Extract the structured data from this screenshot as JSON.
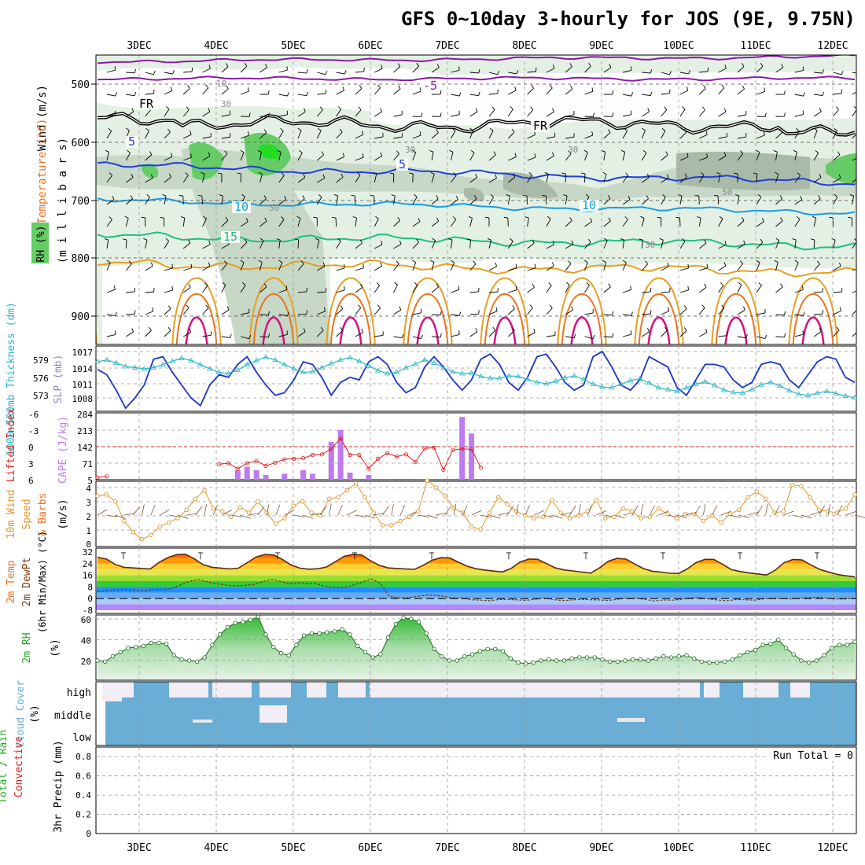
{
  "title": "GFS 0~10day 3-hourly for JOS (9E, 9.75N)",
  "dates": [
    "3DEC",
    "4DEC",
    "5DEC",
    "6DEC",
    "7DEC",
    "8DEC",
    "9DEC",
    "10DEC",
    "11DEC",
    "12DEC"
  ],
  "colors": {
    "frame": "#000000",
    "grid": "#999999",
    "rh_light": "#e3f0e3",
    "rh_mid": "#c7d8c7",
    "rh_dark": "#a9baa9",
    "rh_green": "#66cc66",
    "rh_bright": "#22dd22",
    "wind_barb": "#000000",
    "purple": "#8c1aaa",
    "blue": "#1f3fd6",
    "lightblue": "#1a9be6",
    "teal": "#1dc07f",
    "gold": "#e6a020",
    "orange": "#ea7420",
    "magenta": "#d4137f",
    "slp": "#1a35c8",
    "thick": "#2ab7c9",
    "cape": "#c07af0",
    "li": "#e02020",
    "wind10": "#e5962a",
    "cloud": "#6aadd5"
  },
  "chart_data": [
    {
      "type": "contour",
      "panel": "upper-air",
      "ylabel_parts": [
        "Wind (m/s)",
        "Temperature (°C)",
        "RH (%)"
      ],
      "ylabel_unit": "(m i l l i b a r s)",
      "yticks": [
        "500",
        "600",
        "700",
        "800",
        "900"
      ],
      "ylim": [
        950,
        450
      ],
      "isotherm_labels": [
        "-5",
        "FR",
        "FR",
        "5",
        "5",
        "10",
        "10",
        "15"
      ],
      "rh_labels": [
        "10",
        "30",
        "30",
        "30",
        "50",
        "50",
        "30"
      ]
    },
    {
      "type": "line",
      "panel": "slp-thickness",
      "ylabel_left": "1000~500mb Thickness (dm)",
      "ylabel_right": "SLP (mb)",
      "yticks_left": [
        "579",
        "576",
        "573"
      ],
      "yticks_right": [
        "1017",
        "1014",
        "1011",
        "1008"
      ],
      "series": [
        {
          "name": "SLP (mb)",
          "values": [
            1013.5,
            1012.5,
            1009.5,
            1006,
            1008,
            1010.5,
            1015.5,
            1016,
            1013,
            1010.5,
            1008,
            1006.5,
            1010.5,
            1012.5,
            1012,
            1014.5,
            1016,
            1013,
            1010.5,
            1008.5,
            1009,
            1011.5,
            1015,
            1014.5,
            1012,
            1008.5,
            1011,
            1012,
            1011.5,
            1015,
            1016,
            1014.5,
            1011,
            1009,
            1010,
            1014,
            1016,
            1014,
            1011.5,
            1009.5,
            1011.5,
            1015.5,
            1016.5,
            1014.5,
            1011,
            1009.5,
            1012,
            1016,
            1016.5,
            1014,
            1011,
            1009.5,
            1010.5,
            1016,
            1017,
            1014,
            1010.5,
            1009.5,
            1011.5,
            1016,
            1015,
            1014,
            1010,
            1008.5,
            1011.5,
            1014.5,
            1014.5,
            1014,
            1011.5,
            1010,
            1011,
            1014.5,
            1015,
            1014.5,
            1011.5,
            1010,
            1012.5,
            1015,
            1016,
            1015.5,
            1012,
            1011
          ]
        },
        {
          "name": "Thickness (dm)",
          "values": [
            578.6,
            578.9,
            578.4,
            577.8,
            577.6,
            577.4,
            577.6,
            578.1,
            578.7,
            579.2,
            578.8,
            578.1,
            577.4,
            576.8,
            576.6,
            577.2,
            578.1,
            578.8,
            579.4,
            578.9,
            578.1,
            577.4,
            576.8,
            576.9,
            577.6,
            578.3,
            578.9,
            579.3,
            578.7,
            577.9,
            577.1,
            576.6,
            576.8,
            577.6,
            578.2,
            578.9,
            578.4,
            577.6,
            576.9,
            576.6,
            576.7,
            576.1,
            575.8,
            575.8,
            576.2,
            576.1,
            575.6,
            575.1,
            574.9,
            575.3,
            575.9,
            576.2,
            575.6,
            574.8,
            574.3,
            574.2,
            574.8,
            575.4,
            575.7,
            575.0,
            574.2,
            573.9,
            573.6,
            574.2,
            574.8,
            575.2,
            574.6,
            573.8,
            573.4,
            573.3,
            573.9,
            574.7,
            575.1,
            574.5,
            573.7,
            573.1,
            572.9,
            573.3,
            573.6,
            573.2,
            572.8,
            572.5
          ]
        }
      ]
    },
    {
      "type": "bar",
      "panel": "cape-li",
      "ylabel_left": "Lifted Index",
      "ylabel_right": "CAPE (J/kg)",
      "yticks_left": [
        "-6",
        "-3",
        "0",
        "3",
        "6"
      ],
      "yticks_right": [
        "284",
        "213",
        "142",
        "71",
        "5"
      ],
      "series": [
        {
          "name": "CAPE (J/kg)",
          "values": [
            0,
            0,
            0,
            0,
            0,
            0,
            0,
            0,
            0,
            0,
            0,
            0,
            0,
            0,
            0,
            40,
            55,
            40,
            20,
            0,
            25,
            0,
            40,
            25,
            0,
            160,
            210,
            30,
            0,
            20,
            0,
            0,
            0,
            0,
            0,
            0,
            0,
            0,
            0,
            265,
            195,
            0,
            0,
            0,
            0,
            0,
            0,
            0,
            0,
            0,
            0,
            0,
            0,
            0,
            0,
            0,
            0,
            0,
            0,
            0,
            0,
            0,
            0,
            0,
            0,
            0,
            0,
            0,
            0,
            0,
            0,
            0,
            0,
            0,
            0,
            0,
            0,
            0,
            0,
            0,
            0,
            0
          ]
        },
        {
          "name": "Lifted Index",
          "values": [
            5.6,
            5.4,
            null,
            null,
            null,
            null,
            null,
            null,
            null,
            null,
            null,
            null,
            null,
            3.2,
            3.0,
            4.0,
            3.0,
            2.6,
            3.5,
            2.9,
            2.3,
            2.2,
            2.1,
            1.5,
            1.4,
            0.4,
            -1.5,
            1.5,
            1.5,
            4.0,
            2.2,
            1.2,
            1.8,
            1.4,
            2.8,
            0.3,
            0.2,
            4.2,
            0.6,
            0.4,
            0.5,
            3.8,
            null,
            null,
            null,
            null,
            null,
            null,
            null,
            null,
            null,
            null,
            null,
            null,
            null,
            null,
            null,
            null,
            null,
            null,
            null,
            null,
            null,
            null,
            null,
            null,
            null,
            null,
            null,
            null,
            null,
            null,
            null,
            null,
            null,
            null,
            null,
            null,
            null,
            null,
            null,
            null
          ]
        }
      ]
    },
    {
      "type": "line",
      "panel": "wind10m",
      "ylabel": "10m Wind Speed & Barbs",
      "yunit": "(m/s)",
      "yticks": [
        "0",
        "1",
        "2",
        "3",
        "4"
      ],
      "series": [
        {
          "name": "10m Wind Speed (m/s)",
          "values": [
            3.4,
            3.5,
            3.0,
            1.6,
            0.8,
            0.3,
            0.6,
            1.2,
            1.5,
            1.8,
            2.4,
            3.2,
            3.8,
            2.5,
            2.3,
            1.9,
            2.6,
            2.2,
            3.0,
            2.2,
            1.4,
            1.8,
            2.7,
            3.0,
            2.2,
            2.0,
            3.2,
            3.3,
            3.8,
            4.3,
            3.3,
            2.2,
            1.3,
            1.3,
            1.6,
            1.9,
            2.3,
            4.5,
            4.0,
            3.4,
            2.5,
            2.2,
            1.2,
            1.0,
            2.2,
            3.3,
            2.8,
            2.3,
            2.0,
            1.8,
            1.9,
            3.1,
            2.2,
            1.8,
            2.0,
            2.3,
            3.1,
            1.8,
            1.9,
            2.5,
            2.3,
            1.8,
            1.9,
            2.5,
            2.1,
            1.8,
            2.1,
            2.1,
            1.6,
            2.0,
            1.5,
            2.1,
            2.4,
            3.3,
            3.7,
            3.2,
            2.2,
            2.3,
            4.2,
            4.1,
            3.3,
            2.4,
            2.3,
            2.2,
            2.5,
            3.5
          ]
        }
      ]
    },
    {
      "type": "area",
      "panel": "temperature",
      "ylabel": "2m Temp 2m DewPt (6hr Min/Max) (°C)",
      "yticks": [
        "32",
        "24",
        "16",
        "8",
        "0",
        "-8"
      ],
      "series": [
        {
          "name": "2m Temp (°C)",
          "values": [
            28.4,
            27.2,
            23.5,
            21.5,
            21.1,
            20.7,
            20.4,
            24.9,
            28.2,
            30.2,
            30.5,
            27.3,
            23.3,
            21.5,
            21.0,
            20.4,
            20.9,
            24.7,
            28.6,
            30.4,
            30.0,
            26.9,
            23.0,
            20.9,
            20.2,
            20.5,
            21.7,
            25.3,
            29.0,
            30.3,
            30.0,
            26.1,
            22.8,
            21.1,
            20.7,
            20.3,
            20.1,
            22.9,
            26.4,
            28.1,
            27.9,
            25.0,
            22.2,
            20.5,
            19.6,
            18.9,
            18.3,
            20.8,
            25.2,
            27.2,
            27.0,
            24.0,
            21.1,
            19.7,
            19.0,
            18.2,
            17.5,
            21.1,
            25.7,
            27.6,
            27.2,
            23.8,
            20.6,
            18.8,
            18.2,
            17.4,
            17.3,
            20.5,
            24.8,
            27.0,
            26.9,
            23.5,
            19.9,
            18.6,
            17.6,
            16.9,
            16.2,
            19.6,
            24.8,
            26.9,
            26.6,
            23.2,
            20.1,
            18.3,
            16.6,
            15.7,
            14.9
          ]
        },
        {
          "name": "2m DewPt (°C)",
          "values": [
            5.0,
            5.3,
            6.1,
            6.4,
            6.0,
            5.2,
            6.3,
            6.2,
            6.8,
            9.0,
            11.8,
            13.0,
            11.6,
            10.2,
            9.4,
            8.7,
            9.1,
            9.5,
            11.4,
            13.2,
            11.9,
            10.2,
            10.8,
            10.3,
            10.1,
            8.3,
            7.8,
            7.5,
            9.2,
            11.3,
            13.6,
            10.5,
            1.4,
            0.6,
            0.6,
            1.5,
            2.4,
            2.3,
            1.5,
            0.3,
            0.4,
            -0.8,
            -1.1,
            -1.5,
            -0.6,
            -0.6,
            -0.9,
            -1.2,
            -0.5,
            0.4,
            -0.7,
            -1.4,
            -0.9,
            -0.5,
            -0.8,
            -0.9,
            -1.3,
            -0.5,
            0.3,
            0.2,
            -0.5,
            -1.6,
            -1.0,
            -1.1,
            -0.5,
            0.5,
            0.7,
            -0.3,
            -1.0,
            -1.5,
            -0.6,
            -0.8,
            -1.1,
            -0.2,
            0.2,
            0.0,
            -0.3,
            0.4,
            0.6,
            0.9,
            0.2,
            -0.3,
            -0.2,
            0.2
          ]
        }
      ]
    },
    {
      "type": "area",
      "panel": "rh2m",
      "ylabel": "2m RH",
      "yunit": "(%)",
      "yticks": [
        "60",
        "40",
        "20"
      ],
      "series": [
        {
          "name": "2m RH (%)",
          "values": [
            20,
            19,
            24,
            28,
            32,
            33,
            34,
            37,
            37,
            36,
            25,
            21,
            20,
            19,
            23,
            35,
            45,
            52,
            56,
            57,
            59,
            62,
            45,
            33,
            27,
            25,
            35,
            44,
            46,
            46,
            47,
            48,
            50,
            45,
            34,
            28,
            23,
            26,
            42,
            55,
            61,
            60,
            57,
            46,
            31,
            24,
            20,
            20,
            24,
            26,
            29,
            31,
            31,
            29,
            22,
            18,
            17,
            18,
            20,
            21,
            20,
            20,
            22,
            23,
            23,
            23,
            21,
            19,
            19,
            20,
            21,
            21,
            20,
            22,
            24,
            23,
            24,
            25,
            22,
            19,
            18,
            18,
            19,
            21,
            25,
            28,
            30,
            35,
            36,
            40,
            32,
            26,
            20,
            18,
            20,
            25,
            32,
            35,
            35,
            38
          ]
        }
      ]
    },
    {
      "type": "bar",
      "panel": "cloud",
      "ylabel": "Cloud Cover",
      "yunit": "(%)",
      "layer_labels": [
        "high",
        "middle",
        "low"
      ]
    },
    {
      "type": "bar",
      "panel": "precip",
      "ylabel_left": "Total / Rain",
      "ylabel_right": "Convective",
      "yunit": "3hr Precip (mm)",
      "yticks": [
        "0.8",
        "0.6",
        "0.4",
        "0.2",
        "0"
      ],
      "run_total": "Run Total = 0",
      "values": []
    }
  ]
}
